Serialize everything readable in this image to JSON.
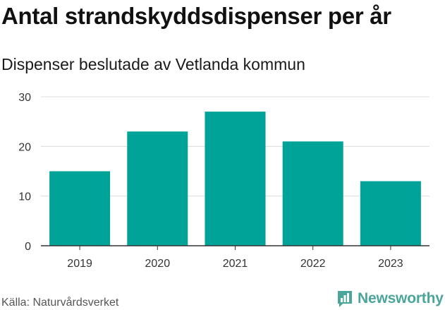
{
  "header": {
    "title": "Antal strandskyddsdispenser per år",
    "subtitle": "Dispenser beslutade av Vetlanda kommun"
  },
  "footer": {
    "source": "Källa: Naturvårdsverket",
    "brand": "Newsworthy"
  },
  "colors": {
    "bar": "#00a398",
    "grid": "#dcdcdc",
    "axis": "#333333",
    "brand": "#4aa59a"
  },
  "chart_data": {
    "type": "bar",
    "title": "Antal strandskyddsdispenser per år",
    "subtitle": "Dispenser beslutade av Vetlanda kommun",
    "categories": [
      "2019",
      "2020",
      "2021",
      "2022",
      "2023"
    ],
    "values": [
      15,
      23,
      27,
      21,
      13
    ],
    "xlabel": "",
    "ylabel": "",
    "ylim": [
      0,
      30
    ],
    "yticks": [
      0,
      10,
      20,
      30
    ],
    "grid": true,
    "legend": "none"
  }
}
